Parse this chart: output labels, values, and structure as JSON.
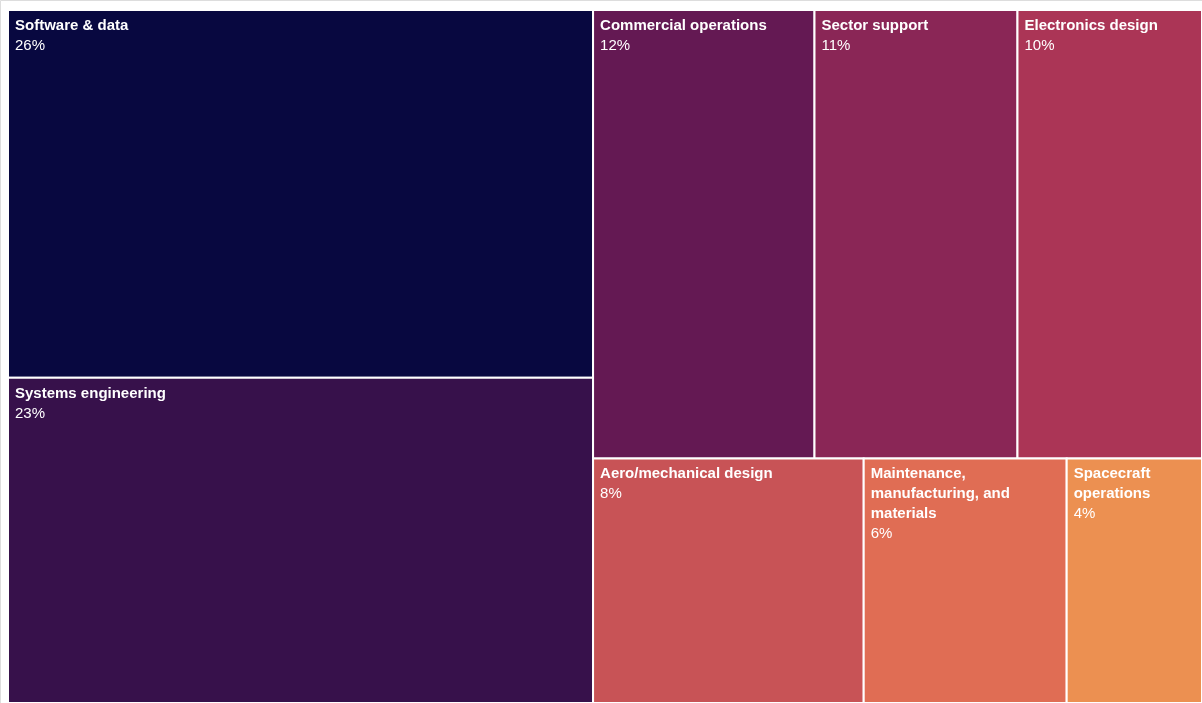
{
  "chart_data": {
    "type": "other",
    "categories": [
      "Software & data",
      "Systems engineering",
      "Commercial operations",
      "Sector support",
      "Electronics design",
      "Aero/mechanical design",
      "Maintenance, manufacturing, and materials",
      "Spacecraft operations"
    ],
    "values": [
      26,
      23,
      12,
      11,
      10,
      8,
      6,
      4
    ],
    "value_labels": [
      "26%",
      "23%",
      "12%",
      "11%",
      "10%",
      "8%",
      "6%",
      "4%"
    ],
    "colors": [
      "#080840",
      "#37114b",
      "#641953",
      "#8a2656",
      "#ab3556",
      "#c85356",
      "#e06d54",
      "#ec9051"
    ]
  }
}
